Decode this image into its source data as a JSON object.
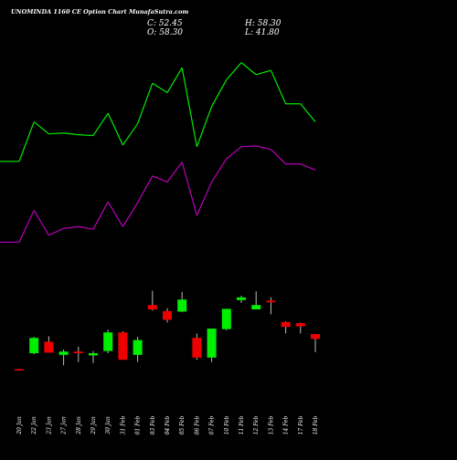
{
  "chart_data": {
    "type": "candlestick",
    "title": "UNOMINDA 1160  CE Option  Chart MunafaSutra.com",
    "ohlc_readout": {
      "close_label": "C: 52.45",
      "high_label": "H: 58.30",
      "open_label": "O: 58.30",
      "low_label": "L: 41.80"
    },
    "categories": [
      "20 Jan",
      "22 Jan",
      "23 Jan",
      "27 Jan",
      "28 Jan",
      "29 Jan",
      "30 Jan",
      "31 Feb",
      "01 Feb",
      "03 Feb",
      "04 Feb",
      "05 Feb",
      "06 Feb",
      "07 Feb",
      "10 Feb",
      "11 Feb",
      "12 Feb",
      "13 Feb",
      "14 Feb",
      "17 Feb",
      "18 Feb"
    ],
    "price_range": [
      0,
      260
    ],
    "candles": [
      {
        "open": 1.0,
        "high": 1.0,
        "low": 0.6,
        "close": 0.6
      },
      {
        "open": 30.0,
        "high": 60.0,
        "low": 28.0,
        "close": 58.0
      },
      {
        "open": 51.0,
        "high": 61.0,
        "low": 31.0,
        "close": 31.0
      },
      {
        "open": 27.0,
        "high": 37.0,
        "low": 8.0,
        "close": 33.0
      },
      {
        "open": 33.0,
        "high": 42.0,
        "low": 14.0,
        "close": 30.0
      },
      {
        "open": 26.0,
        "high": 34.0,
        "low": 12.0,
        "close": 30.0
      },
      {
        "open": 34.0,
        "high": 73.0,
        "low": 30.0,
        "close": 68.0
      },
      {
        "open": 68.0,
        "high": 70.0,
        "low": 19.0,
        "close": 18.0
      },
      {
        "open": 27.0,
        "high": 60.0,
        "low": 14.0,
        "close": 54.0
      },
      {
        "open": 118.0,
        "high": 144.0,
        "low": 108.0,
        "close": 110.0
      },
      {
        "open": 107.0,
        "high": 112.0,
        "low": 86.0,
        "close": 91.0
      },
      {
        "open": 106.0,
        "high": 142.0,
        "low": 105.0,
        "close": 128.0
      },
      {
        "open": 58.0,
        "high": 66.0,
        "low": 18.0,
        "close": 22.0
      },
      {
        "open": 22.0,
        "high": 75.0,
        "low": 14.0,
        "close": 75.0
      },
      {
        "open": 74.0,
        "high": 111.0,
        "low": 72.0,
        "close": 111.0
      },
      {
        "open": 127.0,
        "high": 135.0,
        "low": 122.0,
        "close": 132.0
      },
      {
        "open": 110.0,
        "high": 143.0,
        "low": 110.0,
        "close": 118.0
      },
      {
        "open": 126.0,
        "high": 132.0,
        "low": 101.0,
        "close": 123.0
      },
      {
        "open": 87.0,
        "high": 88.0,
        "low": 66.0,
        "close": 78.0
      },
      {
        "open": 85.0,
        "high": 86.0,
        "low": 66.0,
        "close": 79.0
      },
      {
        "open": 65.0,
        "high": 65.0,
        "low": 32.0,
        "close": 56.0
      }
    ],
    "green_line_values": [
      404,
      404,
      450,
      436,
      437,
      435,
      434,
      460,
      423,
      448,
      495,
      484,
      513,
      421,
      468,
      499,
      519,
      505,
      510,
      471,
      471,
      450
    ],
    "magenta_line_values": [
      310,
      310,
      347,
      318,
      326,
      328,
      325,
      357,
      328,
      356,
      387,
      380,
      403,
      341,
      380,
      407,
      421,
      422,
      418,
      401,
      401,
      394
    ],
    "line_range": [
      220,
      560
    ]
  },
  "colors": {
    "background": "#000000",
    "up_candle": "#00ee00",
    "down_candle": "#ee0000",
    "wick": "#bbbbbb",
    "green_line": "#00ee00",
    "magenta_line": "#bb00bb",
    "text": "#ffffff"
  }
}
